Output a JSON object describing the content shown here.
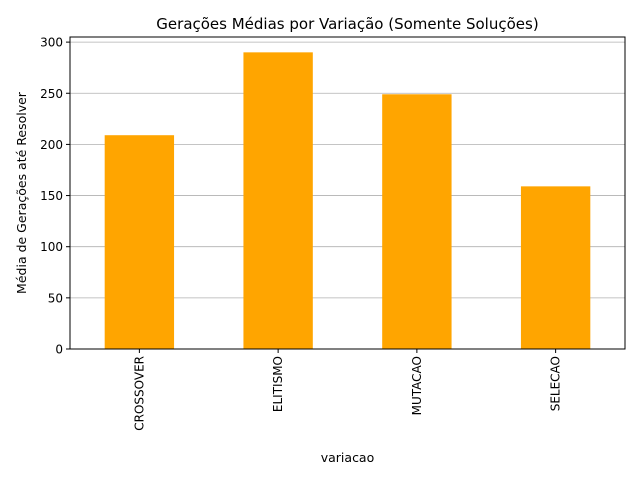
{
  "chart_data": {
    "type": "bar",
    "title": "Gerações Médias por Variação (Somente Soluções)",
    "xlabel": "variacao",
    "ylabel": "Média de Gerações até Resolver",
    "categories": [
      "CROSSOVER",
      "ELITISMO",
      "MUTACAO",
      "SELECAO"
    ],
    "values": [
      209,
      290,
      249,
      159
    ],
    "ylim": [
      0,
      305
    ],
    "yticks": [
      0,
      50,
      100,
      150,
      200,
      250,
      300
    ],
    "grid": "horizontal",
    "bar_color": "#ffa500",
    "grid_color": "#b0b0b0",
    "axis_color": "#000000"
  }
}
